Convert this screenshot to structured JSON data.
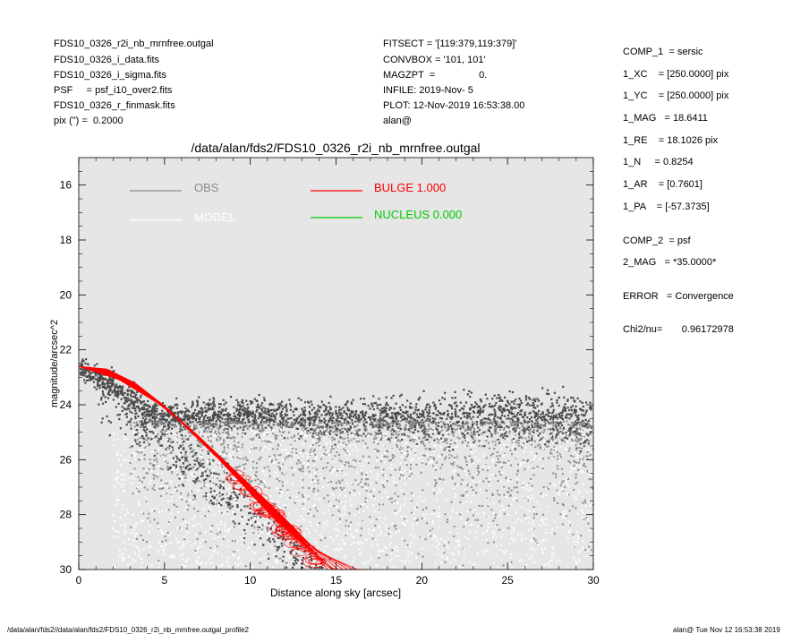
{
  "header_left": [
    "FDS10_0326_r2i_nb_mrnfree.outgal",
    "FDS10_0326_i_data.fits",
    "FDS10_0326_i_sigma.fits",
    "PSF     = psf_i10_over2.fits",
    "FDS10_0326_r_finmask.fits",
    "pix (\") =  0.2000"
  ],
  "header_mid": [
    "FITSECT = '[119:379,119:379]'",
    "CONVBOX = '101, 101'",
    "MAGZPT  =                0.",
    "INFILE: 2019-Nov- 5",
    "PLOT: 12-Nov-2019 16:53:38.00",
    "alan@"
  ],
  "params": [
    "COMP_1  = sersic",
    "1_XC    = [250.0000] pix",
    "1_YC    = [250.0000] pix",
    "1_MAG   = 18.6411",
    "1_RE    = 18.1026 pix",
    "1_N     = 0.8254",
    "1_AR    = [0.7601]",
    "1_PA    = [-57.3735]",
    "COMP_2  = psf",
    "2_MAG   = *35.0000*",
    "ERROR   = Convergence",
    "Chi2/nu=       0.96172978"
  ],
  "footer_left": "/data/alan/fds2//data/alan/fds2/FDS10_0326_r2i_nb_mrnfree.outgal_profile2",
  "footer_right": "alan@  Tue Nov 12 16:53:38 2019",
  "colors": {
    "plot_bg": "#e6e6e6",
    "obs": "#4a4a4a",
    "obs_faint": "#8c8c8c",
    "model": "#ffffff",
    "bulge": "#ff0000",
    "nucleus": "#00cc00"
  },
  "chart_data": {
    "type": "scatter",
    "title": "/data/alan/fds2/FDS10_0326_r2i_nb_mrnfree.outgal",
    "xlabel": "Distance along sky [arcsec]",
    "ylabel": "magnitude/arcsec^2",
    "xlim": [
      0,
      30
    ],
    "ylim": [
      30,
      15
    ],
    "x_ticks": [
      0,
      5,
      10,
      15,
      20,
      25,
      30
    ],
    "y_ticks": [
      16,
      18,
      20,
      22,
      24,
      26,
      28,
      30
    ],
    "grid": false,
    "legend_position": "top-left",
    "legend": [
      {
        "label": "OBS",
        "color": "#8c8c8c"
      },
      {
        "label": "MODEL",
        "color": "#ffffff"
      },
      {
        "label": "BULGE  1.000",
        "color": "#ff0000"
      },
      {
        "label": "NUCLEUS  0.000",
        "color": "#00cc00"
      }
    ],
    "series": [
      {
        "name": "BULGE",
        "description_points": [
          [
            0,
            22.6
          ],
          [
            2,
            22.9
          ],
          [
            4,
            23.6
          ],
          [
            6,
            24.6
          ],
          [
            8,
            25.8
          ],
          [
            10,
            27.0
          ],
          [
            12,
            28.3
          ],
          [
            14,
            29.6
          ],
          [
            14.5,
            30
          ]
        ]
      },
      {
        "name": "OBS",
        "background_level": 24.5,
        "points": [
          [
            0,
            22.7
          ],
          [
            1,
            22.9
          ],
          [
            2,
            23.3
          ],
          [
            3,
            23.8
          ],
          [
            4,
            24.2
          ],
          [
            5,
            24.4
          ],
          [
            6,
            24.4
          ],
          [
            10,
            24.4
          ],
          [
            15,
            24.5
          ],
          [
            20,
            24.5
          ],
          [
            25,
            24.5
          ],
          [
            30,
            24.6
          ]
        ]
      }
    ]
  }
}
